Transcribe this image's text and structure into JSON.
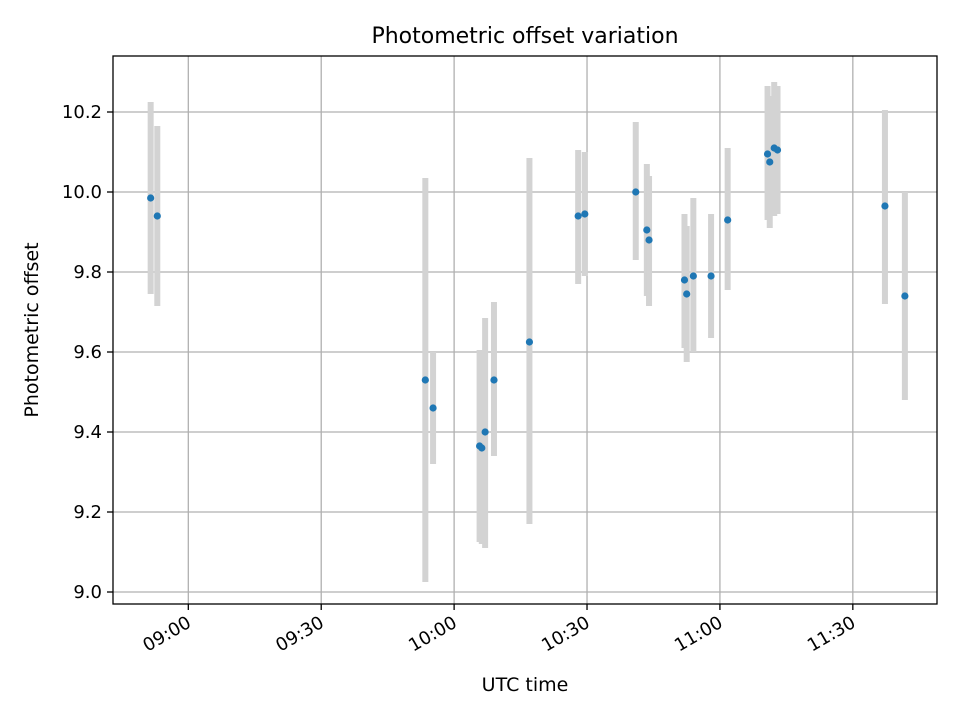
{
  "chart_data": {
    "type": "scatter",
    "title": "Photometric offset variation",
    "xlabel": "UTC time",
    "ylabel": "Photometric offset",
    "x_axis_type": "time",
    "xlim": [
      "08:43",
      "11:49"
    ],
    "ylim": [
      8.97,
      10.34
    ],
    "x_ticks": [
      "09:00",
      "09:30",
      "10:00",
      "10:30",
      "11:00",
      "11:30"
    ],
    "y_ticks": [
      9.0,
      9.2,
      9.4,
      9.6,
      9.8,
      10.0,
      10.2
    ],
    "y_tick_labels": [
      "9.0",
      "9.2",
      "9.4",
      "9.6",
      "9.8",
      "10.0",
      "10.2"
    ],
    "grid": true,
    "legend": null,
    "colors": {
      "points": "#1f77b4",
      "error_bars": "#d3d3d3",
      "grid": "#b0b0b0"
    },
    "series": [
      {
        "points": [
          {
            "x": "08:51:30",
            "y": 9.985,
            "ylow": 9.745,
            "yhigh": 10.225
          },
          {
            "x": "08:53:00",
            "y": 9.94,
            "ylow": 9.715,
            "yhigh": 10.165
          },
          {
            "x": "09:53:30",
            "y": 9.53,
            "ylow": 9.025,
            "yhigh": 10.035
          },
          {
            "x": "09:55:15",
            "y": 9.46,
            "ylow": 9.32,
            "yhigh": 9.6
          },
          {
            "x": "10:05:45",
            "y": 9.365,
            "ylow": 9.125,
            "yhigh": 9.605
          },
          {
            "x": "10:06:15",
            "y": 9.36,
            "ylow": 9.12,
            "yhigh": 9.6
          },
          {
            "x": "10:07:00",
            "y": 9.4,
            "ylow": 9.11,
            "yhigh": 9.685
          },
          {
            "x": "10:09:00",
            "y": 9.53,
            "ylow": 9.34,
            "yhigh": 9.725
          },
          {
            "x": "10:17:00",
            "y": 9.625,
            "ylow": 9.17,
            "yhigh": 10.085
          },
          {
            "x": "10:28:00",
            "y": 9.94,
            "ylow": 9.77,
            "yhigh": 10.105
          },
          {
            "x": "10:29:30",
            "y": 9.945,
            "ylow": 9.79,
            "yhigh": 10.1
          },
          {
            "x": "10:41:00",
            "y": 10.0,
            "ylow": 9.83,
            "yhigh": 10.175
          },
          {
            "x": "10:43:30",
            "y": 9.905,
            "ylow": 9.74,
            "yhigh": 10.07
          },
          {
            "x": "10:44:00",
            "y": 9.88,
            "ylow": 9.715,
            "yhigh": 10.04
          },
          {
            "x": "10:52:00",
            "y": 9.78,
            "ylow": 9.61,
            "yhigh": 9.945
          },
          {
            "x": "10:52:30",
            "y": 9.745,
            "ylow": 9.575,
            "yhigh": 9.915
          },
          {
            "x": "10:54:00",
            "y": 9.79,
            "ylow": 9.6,
            "yhigh": 9.985
          },
          {
            "x": "10:58:00",
            "y": 9.79,
            "ylow": 9.635,
            "yhigh": 9.945
          },
          {
            "x": "11:01:45",
            "y": 9.93,
            "ylow": 9.755,
            "yhigh": 10.11
          },
          {
            "x": "11:10:45",
            "y": 10.095,
            "ylow": 9.93,
            "yhigh": 10.265
          },
          {
            "x": "11:11:15",
            "y": 10.075,
            "ylow": 9.91,
            "yhigh": 10.24
          },
          {
            "x": "11:12:15",
            "y": 10.11,
            "ylow": 9.94,
            "yhigh": 10.275
          },
          {
            "x": "11:13:00",
            "y": 10.105,
            "ylow": 9.945,
            "yhigh": 10.265
          },
          {
            "x": "11:37:15",
            "y": 9.965,
            "ylow": 9.72,
            "yhigh": 10.205
          },
          {
            "x": "11:41:45",
            "y": 9.74,
            "ylow": 9.48,
            "yhigh": 10.0
          }
        ]
      }
    ]
  }
}
